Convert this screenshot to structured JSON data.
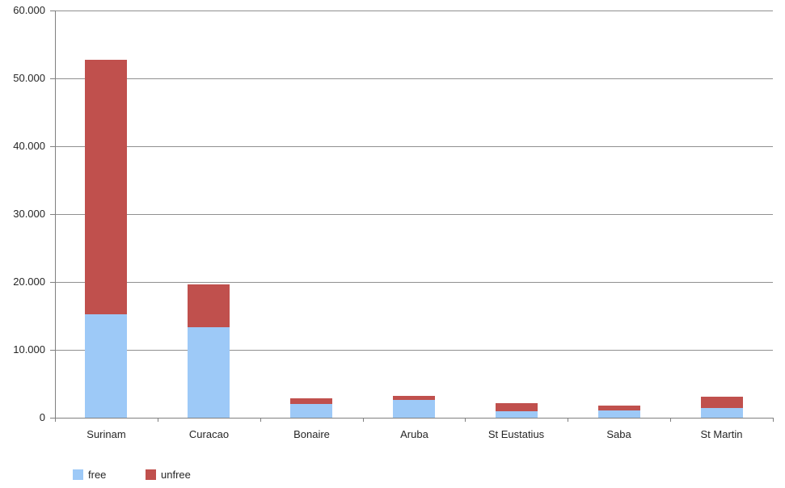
{
  "chart_data": {
    "type": "bar",
    "stacked": true,
    "title": "",
    "xlabel": "",
    "ylabel": "",
    "categories": [
      "Surinam",
      "Curacao",
      "Bonaire",
      "Aruba",
      "St Eustatius",
      "Saba",
      "St Martin"
    ],
    "series": [
      {
        "name": "free",
        "color": "#9DC9F7",
        "values": [
          15200,
          13300,
          2000,
          2600,
          1000,
          1050,
          1400
        ]
      },
      {
        "name": "unfree",
        "color": "#C0504D",
        "values": [
          37500,
          6400,
          850,
          600,
          1100,
          750,
          1700
        ]
      }
    ],
    "ylim": [
      0,
      60000
    ],
    "ytick_interval": 10000,
    "ytick_labels": [
      "0",
      "10.000",
      "20.000",
      "30.000",
      "40.000",
      "50.000",
      "60.000"
    ],
    "grid": "horizontal",
    "legend_position": "bottom-left"
  },
  "colors": {
    "background": "#ffffff",
    "grid_line": "#909090",
    "axis_line": "#808080",
    "text": "#262626"
  }
}
